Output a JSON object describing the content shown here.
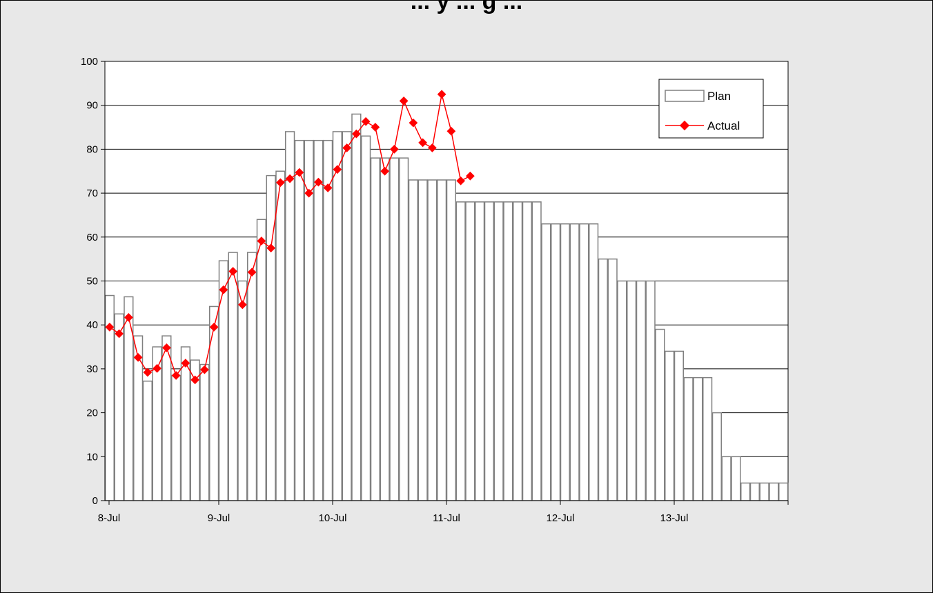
{
  "chart_data": {
    "type": "bar",
    "title": "... y ... g ...",
    "xlabel": "",
    "ylabel": "",
    "ylim": [
      0,
      100
    ],
    "y_ticks": [
      0,
      10,
      20,
      30,
      40,
      50,
      60,
      70,
      80,
      90,
      100
    ],
    "x_tick_labels": [
      "8-Jul",
      "9-Jul",
      "10-Jul",
      "11-Jul",
      "12-Jul",
      "13-Jul"
    ],
    "grid": true,
    "legend_position": "top-right",
    "series": [
      {
        "name": "Plan",
        "type": "bar",
        "color": "#808080",
        "fill": "#ffffff",
        "values": [
          46.7,
          42.5,
          46.4,
          37.5,
          27.2,
          35.0,
          37.5,
          28.5,
          35.0,
          32.0,
          31.0,
          44.2,
          54.6,
          56.5,
          50.0,
          56.5,
          64.0,
          74.0,
          75.0,
          84.0,
          82.0,
          82.0,
          82.0,
          82.0,
          84.0,
          84.0,
          88.0,
          83.0,
          78.0,
          78.0,
          78.0,
          78.0,
          73.0,
          73.0,
          73.0,
          73.0,
          73.0,
          68.0,
          68.0,
          68.0,
          68.0,
          68.0,
          68.0,
          68.0,
          68.0,
          68.0,
          63.0,
          63.0,
          63.0,
          63.0,
          63.0,
          63.0,
          55.0,
          55.0,
          50.0,
          50.0,
          50.0,
          50.0,
          39.0,
          34.0,
          34.0,
          28.0,
          28.0,
          28.0,
          20.0,
          10.0,
          10.0,
          4.0,
          4.0,
          4.0,
          4.0,
          4.0
        ]
      },
      {
        "name": "Actual",
        "type": "line",
        "color": "#ff0000",
        "values": [
          39.5,
          38.0,
          41.7,
          32.6,
          29.2,
          30.1,
          34.8,
          28.5,
          31.3,
          27.5,
          29.8,
          39.5,
          48.0,
          52.2,
          44.6,
          52.0,
          59.1,
          57.5,
          72.4,
          73.3,
          74.7,
          70.0,
          72.5,
          71.2,
          75.4,
          80.3,
          83.5,
          86.3,
          85.0,
          75.0,
          80.0,
          91.0,
          86.0,
          81.5,
          80.3,
          92.5,
          84.1,
          72.8,
          73.9
        ]
      }
    ]
  },
  "colors": {
    "background": "#e8e8e8",
    "plot_area": "#ffffff",
    "bar_border": "#808080",
    "actual_line": "#ff0000",
    "grid": "#000000"
  }
}
